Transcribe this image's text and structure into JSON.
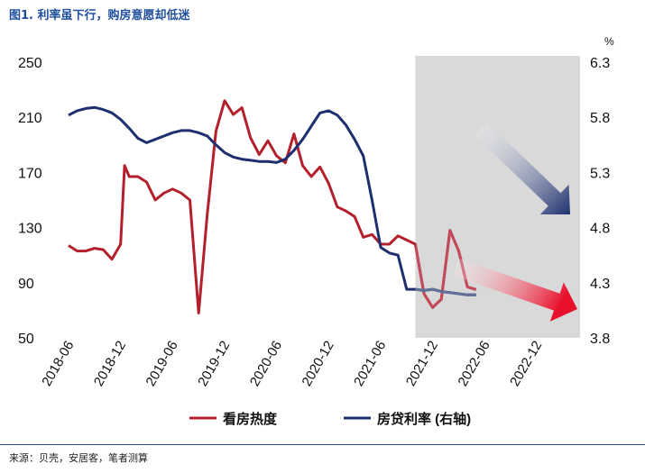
{
  "header": {
    "title": "图1. 利率虽下行，购房意愿却低迷"
  },
  "footer": {
    "source": "来源：贝壳，安居客，笔者测算"
  },
  "chart_data": {
    "type": "line",
    "title": "图1. 利率虽下行，购房意愿却低迷",
    "right_unit": "%",
    "left_axis": {
      "ticks": [
        250,
        210,
        170,
        130,
        90,
        50
      ],
      "ylim": [
        50,
        250
      ]
    },
    "right_axis": {
      "ticks": [
        "6.3",
        "5.8",
        "5.3",
        "4.8",
        "4.3",
        "3.8"
      ],
      "ylim": [
        3.8,
        6.3
      ]
    },
    "x_ticks": [
      "2018-06",
      "2018-12",
      "2019-06",
      "2019-12",
      "2020-06",
      "2020-12",
      "2021-06",
      "2021-12",
      "2022-06",
      "2022-12"
    ],
    "x_range": [
      "2018-06",
      "2023-05"
    ],
    "shaded_region": [
      "2021-10",
      "2023-05"
    ],
    "legend": {
      "position": "bottom"
    },
    "grid": false,
    "colors": {
      "red": "#b3202c",
      "blue": "#1d2f6e",
      "blue_light": "#5f6f98",
      "shade": "#d9d9d9"
    },
    "series": [
      {
        "name": "看房热度",
        "axis": "left",
        "color": "#b3202c",
        "points": [
          [
            "2018-06-01",
            117
          ],
          [
            "2018-07-01",
            113
          ],
          [
            "2018-08-01",
            113
          ],
          [
            "2018-09-01",
            115
          ],
          [
            "2018-10-01",
            114
          ],
          [
            "2018-11-01",
            107
          ],
          [
            "2018-12-01",
            118
          ],
          [
            "2018-12-15",
            175
          ],
          [
            "2019-01-01",
            167
          ],
          [
            "2019-02-01",
            167
          ],
          [
            "2019-03-01",
            163
          ],
          [
            "2019-04-01",
            150
          ],
          [
            "2019-05-01",
            155
          ],
          [
            "2019-06-01",
            158
          ],
          [
            "2019-07-01",
            155
          ],
          [
            "2019-08-01",
            150
          ],
          [
            "2019-09-01",
            68
          ],
          [
            "2019-10-01",
            140
          ],
          [
            "2019-11-01",
            200
          ],
          [
            "2019-12-01",
            222
          ],
          [
            "2020-01-01",
            212
          ],
          [
            "2020-02-01",
            217
          ],
          [
            "2020-03-01",
            195
          ],
          [
            "2020-04-01",
            183
          ],
          [
            "2020-05-01",
            193
          ],
          [
            "2020-06-01",
            182
          ],
          [
            "2020-07-01",
            177
          ],
          [
            "2020-08-01",
            198
          ],
          [
            "2020-09-01",
            175
          ],
          [
            "2020-10-01",
            167
          ],
          [
            "2020-11-01",
            174
          ],
          [
            "2020-12-01",
            162
          ],
          [
            "2021-01-01",
            145
          ],
          [
            "2021-02-01",
            142
          ],
          [
            "2021-03-01",
            138
          ],
          [
            "2021-04-01",
            123
          ],
          [
            "2021-05-01",
            125
          ],
          [
            "2021-06-01",
            118
          ],
          [
            "2021-07-01",
            118
          ],
          [
            "2021-08-01",
            124
          ],
          [
            "2021-09-01",
            121
          ],
          [
            "2021-10-01",
            118
          ],
          [
            "2021-11-01",
            82
          ],
          [
            "2021-12-01",
            72
          ],
          [
            "2022-01-01",
            78
          ],
          [
            "2022-02-01",
            128
          ],
          [
            "2022-03-01",
            113
          ],
          [
            "2022-04-01",
            87
          ],
          [
            "2022-05-01",
            85
          ]
        ]
      },
      {
        "name": "房贷利率 (右轴)",
        "axis": "right",
        "color": "#1d2f6e",
        "points": [
          [
            "2018-06-01",
            5.82
          ],
          [
            "2018-07-01",
            5.86
          ],
          [
            "2018-08-01",
            5.88
          ],
          [
            "2018-09-01",
            5.89
          ],
          [
            "2018-10-01",
            5.87
          ],
          [
            "2018-11-01",
            5.84
          ],
          [
            "2018-12-01",
            5.78
          ],
          [
            "2019-01-01",
            5.7
          ],
          [
            "2019-02-01",
            5.61
          ],
          [
            "2019-03-01",
            5.57
          ],
          [
            "2019-04-01",
            5.6
          ],
          [
            "2019-05-01",
            5.63
          ],
          [
            "2019-06-01",
            5.66
          ],
          [
            "2019-07-01",
            5.68
          ],
          [
            "2019-08-01",
            5.68
          ],
          [
            "2019-09-01",
            5.66
          ],
          [
            "2019-10-01",
            5.63
          ],
          [
            "2019-11-01",
            5.55
          ],
          [
            "2019-12-01",
            5.48
          ],
          [
            "2020-01-01",
            5.44
          ],
          [
            "2020-02-01",
            5.42
          ],
          [
            "2020-03-01",
            5.41
          ],
          [
            "2020-04-01",
            5.4
          ],
          [
            "2020-05-01",
            5.4
          ],
          [
            "2020-06-01",
            5.39
          ],
          [
            "2020-07-01",
            5.42
          ],
          [
            "2020-08-01",
            5.5
          ],
          [
            "2020-09-01",
            5.6
          ],
          [
            "2020-10-01",
            5.72
          ],
          [
            "2020-11-01",
            5.84
          ],
          [
            "2020-12-01",
            5.86
          ],
          [
            "2021-01-01",
            5.82
          ],
          [
            "2021-02-01",
            5.73
          ],
          [
            "2021-03-01",
            5.6
          ],
          [
            "2021-04-01",
            5.45
          ],
          [
            "2021-05-01",
            5.05
          ],
          [
            "2021-06-01",
            4.62
          ],
          [
            "2021-07-01",
            4.57
          ],
          [
            "2021-08-01",
            4.55
          ],
          [
            "2021-09-01",
            4.24
          ],
          [
            "2021-10-01",
            4.24
          ],
          [
            "2021-11-01",
            4.23
          ],
          [
            "2021-12-01",
            4.24
          ],
          [
            "2022-01-01",
            4.22
          ],
          [
            "2022-02-01",
            4.21
          ],
          [
            "2022-03-01",
            4.2
          ],
          [
            "2022-04-01",
            4.19
          ],
          [
            "2022-05-01",
            4.19
          ]
        ]
      }
    ]
  }
}
